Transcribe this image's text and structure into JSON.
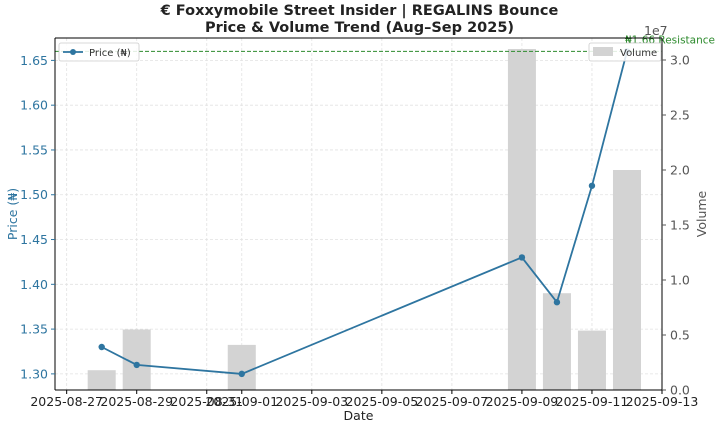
{
  "chart_data": {
    "type": "bar+line",
    "title_line1": "€ Foxxymobile Street Insider | REGALINS Bounce",
    "title_line2": "Price & Volume Trend (Aug–Sep 2025)",
    "xlabel": "Date",
    "ylabel_left": "Price (₦)",
    "ylabel_right": "Volume",
    "right_axis_offset_label": "1e7",
    "x_ticks": [
      "2025-08-27",
      "2025-08-29",
      "2025-08-31",
      "2025-09-01",
      "2025-09-03",
      "2025-09-05",
      "2025-09-07",
      "2025-09-09",
      "2025-09-11",
      "2025-09-13"
    ],
    "y_left_ticks": [
      "1.30",
      "1.35",
      "1.40",
      "1.45",
      "1.50",
      "1.55",
      "1.60",
      "1.65"
    ],
    "y_right_ticks": [
      "0.0",
      "0.5",
      "1.0",
      "1.5",
      "2.0",
      "2.5",
      "3.0"
    ],
    "x_range": [
      "2025-08-26T16:00",
      "2025-09-13T00:00"
    ],
    "y_left_range": [
      1.282,
      1.675
    ],
    "y_right_range": [
      0,
      3.2
    ],
    "series": [
      {
        "name": "Price (₦)",
        "kind": "line",
        "color": "#2e75a0",
        "points": [
          {
            "date": "2025-08-28",
            "value": 1.33
          },
          {
            "date": "2025-08-29",
            "value": 1.31
          },
          {
            "date": "2025-09-01",
            "value": 1.3
          },
          {
            "date": "2025-09-09",
            "value": 1.43
          },
          {
            "date": "2025-09-10",
            "value": 1.38
          },
          {
            "date": "2025-09-11",
            "value": 1.51
          },
          {
            "date": "2025-09-12",
            "value": 1.66
          }
        ]
      },
      {
        "name": "Volume",
        "kind": "bar",
        "color": "#d3d3d3",
        "points": [
          {
            "date": "2025-08-28",
            "value": 0.18
          },
          {
            "date": "2025-08-29",
            "value": 0.55
          },
          {
            "date": "2025-09-01",
            "value": 0.41
          },
          {
            "date": "2025-09-09",
            "value": 3.1
          },
          {
            "date": "2025-09-10",
            "value": 0.88
          },
          {
            "date": "2025-09-11",
            "value": 0.54
          },
          {
            "date": "2025-09-12",
            "value": 2.0
          }
        ]
      }
    ],
    "annotations": [
      {
        "type": "hline",
        "axis": "left",
        "value": 1.66,
        "label": "₦1.66 Resistance",
        "color": "#2e8b2e"
      }
    ],
    "grid": true,
    "legend_left": {
      "placement": "upper-left",
      "label": "Price (₦)"
    },
    "legend_right": {
      "placement": "upper-right",
      "label": "Volume"
    }
  }
}
